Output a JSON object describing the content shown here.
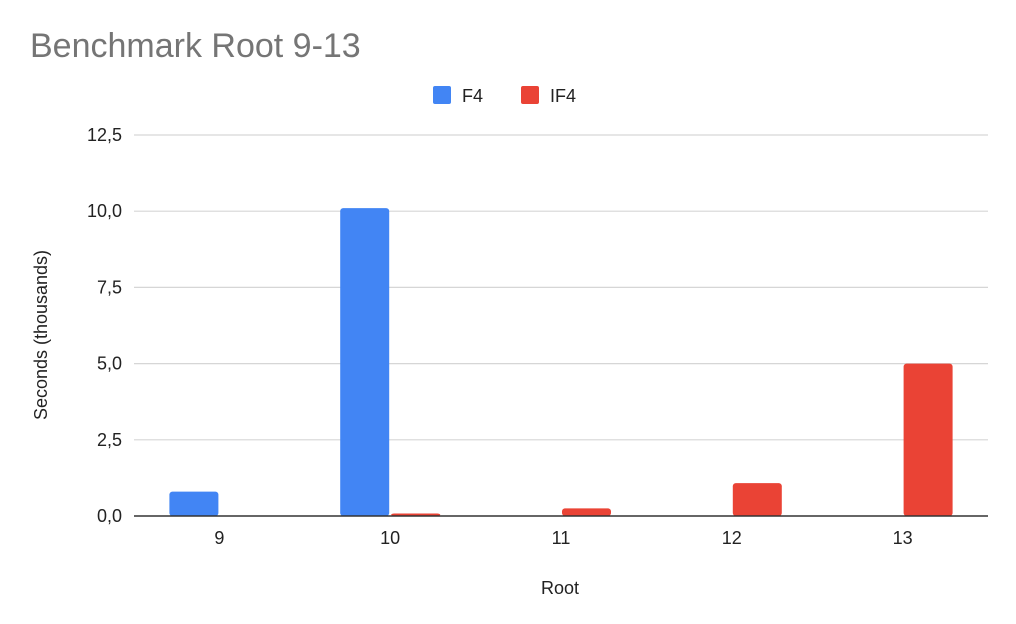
{
  "chart_data": {
    "type": "bar",
    "title": "Benchmark Root 9-13",
    "xlabel": "Root",
    "ylabel": "Seconds (thousands)",
    "categories": [
      "9",
      "10",
      "11",
      "12",
      "13"
    ],
    "series": [
      {
        "name": "F4",
        "color": "#4285f4",
        "values": [
          0.8,
          10.1,
          0,
          0,
          0
        ]
      },
      {
        "name": "IF4",
        "color": "#ea4335",
        "values": [
          0,
          0.08,
          0.25,
          1.08,
          5.0
        ]
      }
    ],
    "ylim": [
      0,
      12.5
    ],
    "yticks": [
      0,
      2.5,
      5,
      7.5,
      10,
      12.5
    ],
    "ytick_labels": [
      "0,0",
      "2,5",
      "5,0",
      "7,5",
      "10,0",
      "12,5"
    ],
    "grid": true,
    "legend_position": "top-center"
  }
}
